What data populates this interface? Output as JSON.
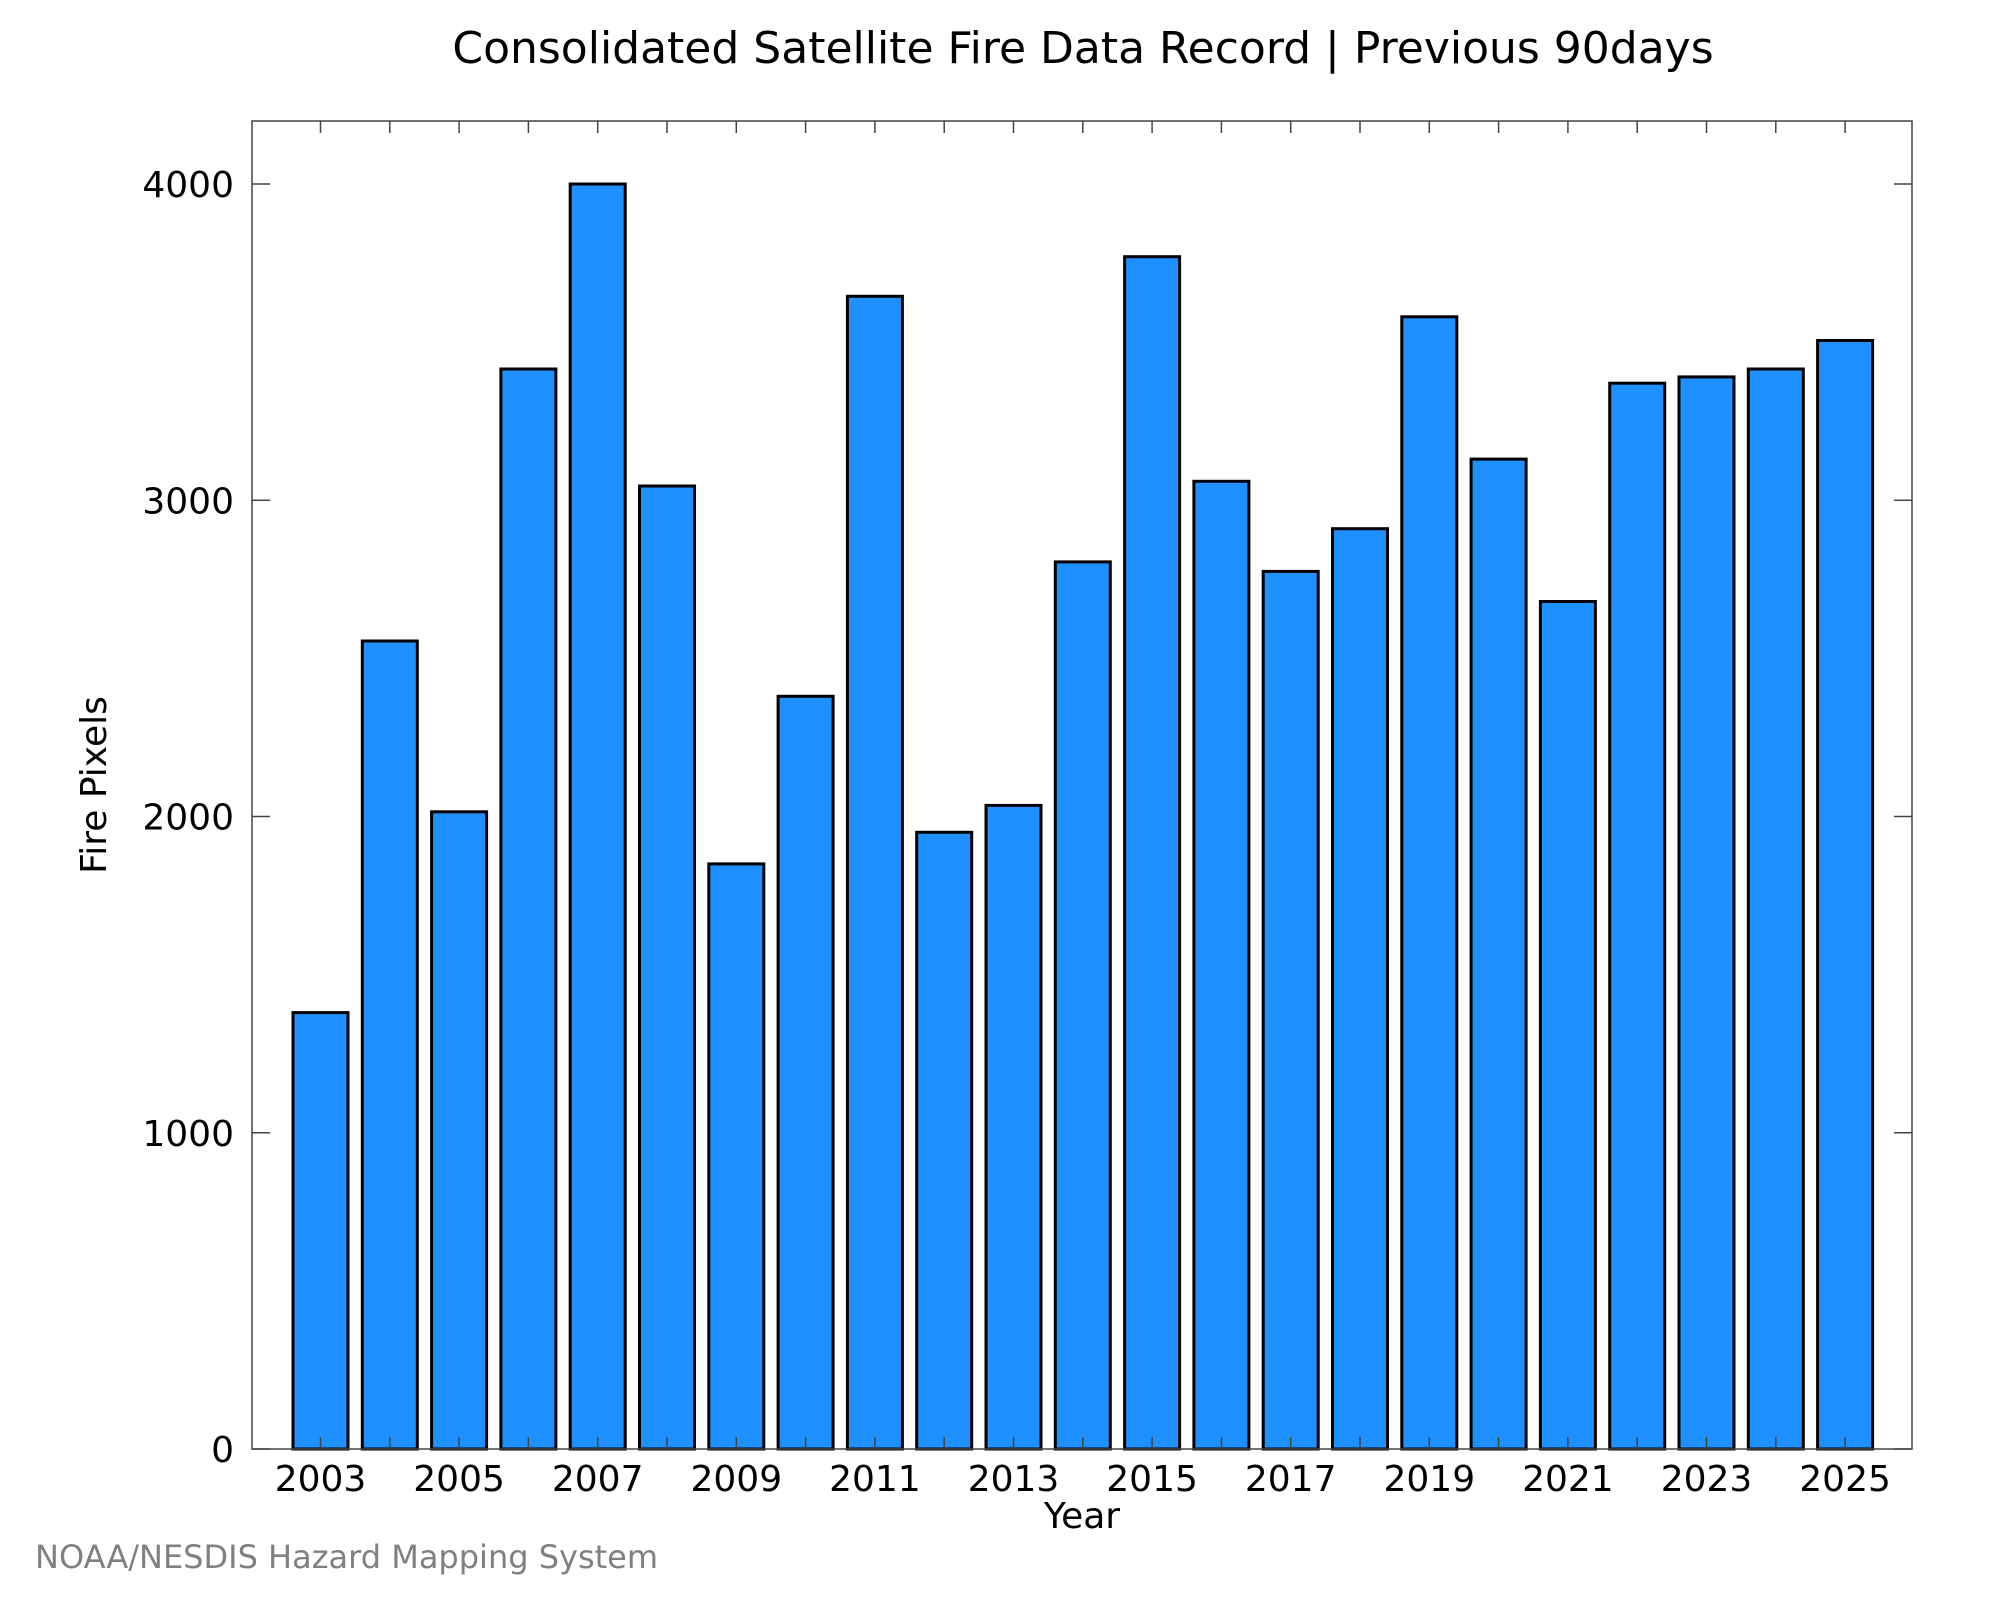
{
  "chart_data": {
    "type": "bar",
    "title": "Consolidated Satellite Fire Data Record | Previous 90days",
    "xlabel": "Year",
    "ylabel": "Fire Pixels",
    "categories": [
      "2003",
      "2004",
      "2005",
      "2006",
      "2007",
      "2008",
      "2009",
      "2010",
      "2011",
      "2012",
      "2013",
      "2014",
      "2015",
      "2016",
      "2017",
      "2018",
      "2019",
      "2020",
      "2021",
      "2022",
      "2023",
      "2024",
      "2025"
    ],
    "values": [
      1380,
      2555,
      2015,
      3415,
      4000,
      3045,
      1850,
      2380,
      3645,
      1950,
      2035,
      2805,
      3770,
      3060,
      2775,
      2910,
      3580,
      3130,
      2680,
      3370,
      3390,
      3415,
      3505
    ],
    "x_tick_labels": [
      "2003",
      "2005",
      "2007",
      "2009",
      "2011",
      "2013",
      "2015",
      "2017",
      "2019",
      "2021",
      "2023",
      "2025"
    ],
    "y_tick_labels": [
      "0",
      "1000",
      "2000",
      "3000",
      "4000"
    ],
    "ylim": [
      0,
      4200
    ],
    "grid": false,
    "bar_color": "#1e90ff",
    "edge_color": "#000000"
  },
  "credit": "NOAA/NESDIS Hazard Mapping System"
}
